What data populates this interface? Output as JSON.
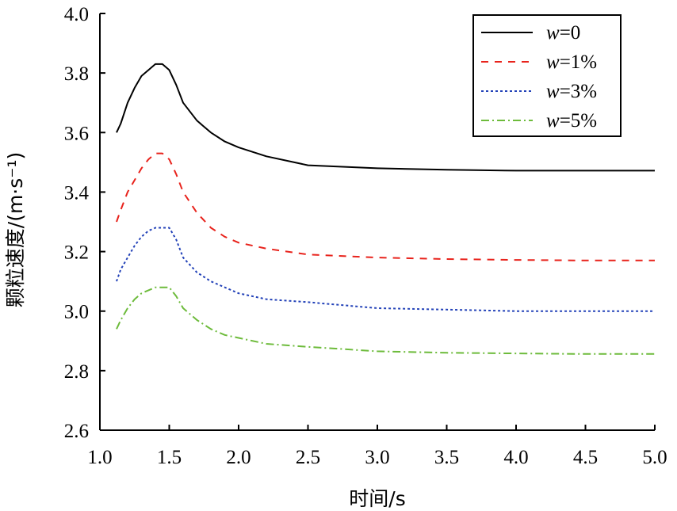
{
  "chart_data": {
    "type": "line",
    "title": "",
    "xlabel": "时间/s",
    "ylabel": "颗粒速度/(m·s⁻¹)",
    "xlim": [
      1.0,
      5.0
    ],
    "ylim": [
      2.6,
      4.0
    ],
    "xticks": [
      "1.0",
      "1.5",
      "2.0",
      "2.5",
      "3.0",
      "3.5",
      "4.0",
      "4.5",
      "5.0"
    ],
    "yticks": [
      "2.6",
      "2.8",
      "3.0",
      "3.2",
      "3.4",
      "3.6",
      "3.8",
      "4.0"
    ],
    "grid": false,
    "legend_position": "top-right",
    "x": [
      1.12,
      1.15,
      1.2,
      1.25,
      1.3,
      1.35,
      1.4,
      1.45,
      1.5,
      1.55,
      1.6,
      1.7,
      1.8,
      1.9,
      2.0,
      2.2,
      2.5,
      3.0,
      3.5,
      4.0,
      4.5,
      5.0
    ],
    "series": [
      {
        "name": "w=0",
        "name_italic": "w",
        "name_rest": "=0",
        "color": "#000000",
        "dash": "",
        "values": [
          3.6,
          3.63,
          3.7,
          3.75,
          3.79,
          3.81,
          3.83,
          3.83,
          3.81,
          3.76,
          3.7,
          3.64,
          3.6,
          3.57,
          3.55,
          3.52,
          3.49,
          3.48,
          3.475,
          3.472,
          3.472,
          3.472
        ]
      },
      {
        "name": "w=1%",
        "name_italic": "w",
        "name_rest": "=1%",
        "color": "#e8231c",
        "dash": "9,8",
        "values": [
          3.3,
          3.34,
          3.4,
          3.44,
          3.48,
          3.51,
          3.53,
          3.53,
          3.51,
          3.46,
          3.4,
          3.33,
          3.28,
          3.25,
          3.23,
          3.21,
          3.19,
          3.18,
          3.175,
          3.172,
          3.17,
          3.17
        ]
      },
      {
        "name": "w=3%",
        "name_italic": "w",
        "name_rest": "=3%",
        "color": "#2342b8",
        "dash": "3,3",
        "values": [
          3.1,
          3.14,
          3.18,
          3.22,
          3.25,
          3.27,
          3.28,
          3.28,
          3.28,
          3.24,
          3.18,
          3.13,
          3.1,
          3.08,
          3.06,
          3.04,
          3.03,
          3.01,
          3.005,
          3.0,
          3.0,
          3.0
        ]
      },
      {
        "name": "w=5%",
        "name_italic": "w",
        "name_rest": "=5%",
        "color": "#6dbb3b",
        "dash": "10,4,2,4",
        "values": [
          2.94,
          2.97,
          3.01,
          3.04,
          3.06,
          3.07,
          3.08,
          3.08,
          3.08,
          3.05,
          3.01,
          2.97,
          2.94,
          2.92,
          2.91,
          2.89,
          2.88,
          2.865,
          2.86,
          2.858,
          2.856,
          2.856
        ]
      }
    ]
  }
}
